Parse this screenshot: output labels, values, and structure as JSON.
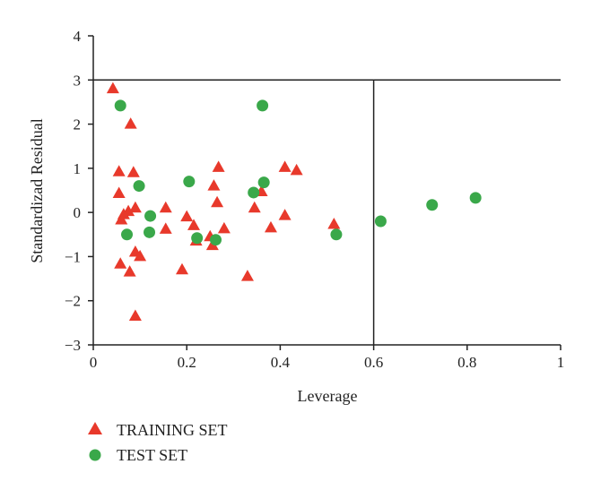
{
  "chart_data": {
    "type": "scatter",
    "xlabel": "Leverage",
    "ylabel": "Standardizad Residual",
    "xlim": [
      0,
      1
    ],
    "ylim": [
      -3,
      4
    ],
    "x_ticks": [
      0,
      0.2,
      0.4,
      0.6,
      0.8,
      1
    ],
    "x_tick_labels": [
      "0",
      "0.2",
      "0.4",
      "0.6",
      "0.8",
      "1"
    ],
    "y_ticks": [
      4,
      3,
      2,
      1,
      0,
      -1,
      -2,
      -3
    ],
    "y_tick_labels": [
      "4",
      "3",
      "2",
      "1",
      "0",
      "−1",
      "−2",
      "−3"
    ],
    "reference_lines": {
      "horizontal_y": 3,
      "vertical_x": 0.6
    },
    "grid": false,
    "legend_position": "bottom-left",
    "series": [
      {
        "name": "TRAINING SET",
        "marker": "triangle",
        "color": "#e8392b",
        "points": [
          [
            0.042,
            2.8
          ],
          [
            0.08,
            2.0
          ],
          [
            0.055,
            0.92
          ],
          [
            0.086,
            0.9
          ],
          [
            0.055,
            0.43
          ],
          [
            0.09,
            0.1
          ],
          [
            0.075,
            0.02
          ],
          [
            0.065,
            -0.05
          ],
          [
            0.06,
            -0.17
          ],
          [
            0.058,
            -1.17
          ],
          [
            0.078,
            -1.35
          ],
          [
            0.09,
            -0.9
          ],
          [
            0.1,
            -1.0
          ],
          [
            0.09,
            -2.35
          ],
          [
            0.155,
            0.1
          ],
          [
            0.155,
            -0.38
          ],
          [
            0.2,
            -0.1
          ],
          [
            0.215,
            -0.3
          ],
          [
            0.22,
            -0.65
          ],
          [
            0.19,
            -1.3
          ],
          [
            0.25,
            -0.55
          ],
          [
            0.255,
            -0.75
          ],
          [
            0.258,
            0.6
          ],
          [
            0.265,
            0.22
          ],
          [
            0.268,
            1.02
          ],
          [
            0.28,
            -0.37
          ],
          [
            0.33,
            -1.45
          ],
          [
            0.345,
            0.1
          ],
          [
            0.36,
            0.47
          ],
          [
            0.38,
            -0.35
          ],
          [
            0.41,
            1.02
          ],
          [
            0.41,
            -0.07
          ],
          [
            0.435,
            0.95
          ],
          [
            0.515,
            -0.27
          ]
        ]
      },
      {
        "name": "TEST SET",
        "marker": "circle",
        "color": "#3aa84a",
        "points": [
          [
            0.058,
            2.42
          ],
          [
            0.072,
            -0.5
          ],
          [
            0.098,
            0.6
          ],
          [
            0.122,
            -0.08
          ],
          [
            0.12,
            -0.45
          ],
          [
            0.205,
            0.7
          ],
          [
            0.222,
            -0.58
          ],
          [
            0.262,
            -0.62
          ],
          [
            0.343,
            0.45
          ],
          [
            0.362,
            2.42
          ],
          [
            0.365,
            0.68
          ],
          [
            0.52,
            -0.5
          ],
          [
            0.615,
            -0.2
          ],
          [
            0.725,
            0.17
          ],
          [
            0.818,
            0.33
          ]
        ]
      }
    ]
  }
}
